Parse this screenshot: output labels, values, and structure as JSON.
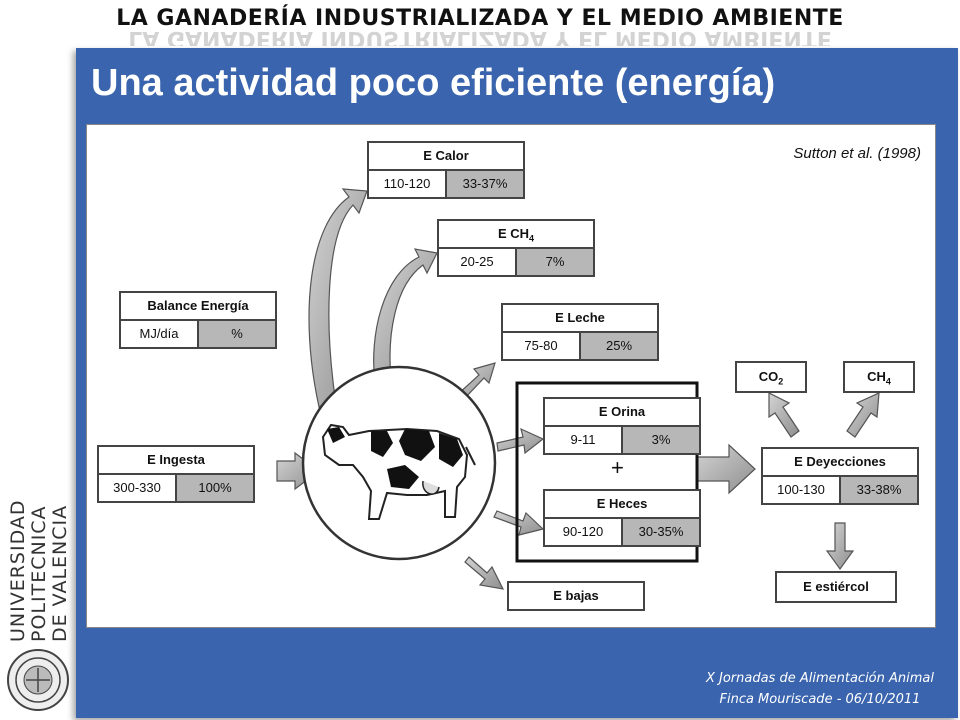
{
  "header": {
    "title": "LA GANADERÍA INDUSTRIALIZADA Y EL MEDIO AMBIENTE"
  },
  "slide": {
    "title": "Una actividad poco eficiente (energía)"
  },
  "figure": {
    "citation": "Sutton et al. (1998)",
    "legend": {
      "title": "Balance Energía",
      "unit_left": "MJ/día",
      "unit_right": "%"
    },
    "ingesta": {
      "title": "E Ingesta",
      "mj": "300-330",
      "pct": "100%"
    },
    "calor": {
      "title": "E Calor",
      "mj": "110-120",
      "pct": "33-37%"
    },
    "ch4": {
      "title_main": "E CH",
      "title_sub": "4",
      "mj": "20-25",
      "pct": "7%"
    },
    "leche": {
      "title": "E Leche",
      "mj": "75-80",
      "pct": "25%"
    },
    "orina": {
      "title": "E Orina",
      "mj": "9-11",
      "pct": "3%"
    },
    "plus": "+",
    "heces": {
      "title": "E Heces",
      "mj": "90-120",
      "pct": "30-35%"
    },
    "bajas": {
      "title": "E bajas"
    },
    "deyecciones": {
      "title": "E Deyecciones",
      "mj": "100-130",
      "pct": "33-38%"
    },
    "co2": {
      "main": "CO",
      "sub": "2"
    },
    "ch4_out": {
      "main": "CH",
      "sub": "4"
    },
    "estiercol": {
      "title": "E estiércol"
    }
  },
  "institution": {
    "name_lines": [
      "UNIVERSIDAD",
      "POLITECNICA",
      "DE VALENCIA"
    ]
  },
  "footer": {
    "line1": "X Jornadas de Alimentación Animal",
    "line2": "Finca Mouriscade  -  06/10/2011"
  },
  "colors": {
    "panel_blue": "#3a64ad",
    "cell_grey": "#b7b7b7",
    "arrow_grey": "#b0b0b0"
  }
}
